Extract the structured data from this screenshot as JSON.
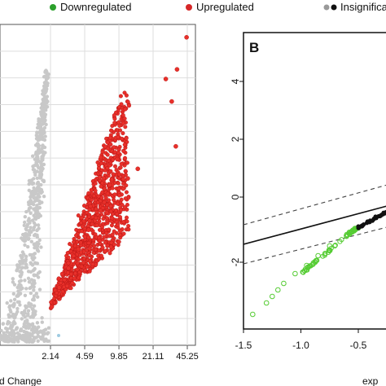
{
  "legend": {
    "items": [
      {
        "label": "Downregulated",
        "color": "#2ca02c"
      },
      {
        "label": "Upregulated",
        "color": "#d62728"
      },
      {
        "label": "Insignificant",
        "color": "#111111",
        "shown_text": "Insignifica"
      }
    ]
  },
  "chart_data": [
    {
      "type": "scatter",
      "panel": "A",
      "xlabel": "d Change",
      "ylabel": "",
      "x_tick_labels": [
        "2.14",
        "4.59",
        "9.85",
        "21.11",
        "45.25"
      ],
      "x_tick_values": [
        2.14,
        4.59,
        9.85,
        21.11,
        45.25
      ],
      "x_scale": "log",
      "grid": true,
      "series": [
        {
          "name": "Upregulated",
          "color": "#d62728",
          "points": [
            [
              44.5,
              0.96
            ],
            [
              36.0,
              0.86
            ],
            [
              28.0,
              0.83
            ],
            [
              32.0,
              0.76
            ],
            [
              35.0,
              0.62
            ],
            [
              15.0,
              0.55
            ],
            [
              12.0,
              0.52
            ],
            [
              9.5,
              0.58
            ],
            [
              8.0,
              0.5
            ],
            [
              6.5,
              0.42
            ],
            [
              5.0,
              0.36
            ],
            [
              4.0,
              0.3
            ],
            [
              3.2,
              0.24
            ],
            [
              2.6,
              0.18
            ],
            [
              2.2,
              0.12
            ]
          ]
        },
        {
          "name": "Insignificant",
          "color": "#cccccc",
          "points": [
            [
              1.0,
              0.02
            ],
            [
              1.4,
              0.08
            ],
            [
              1.8,
              0.14
            ],
            [
              2.0,
              0.2
            ]
          ]
        }
      ]
    },
    {
      "type": "scatter",
      "panel": "B",
      "panel_label": "B",
      "xlabel": "exp",
      "x_tick_labels": [
        "-1.5",
        "-1.0",
        "-0.5"
      ],
      "y_tick_labels": [
        "4",
        "2",
        "0",
        "-2"
      ],
      "xlim": [
        -1.55,
        -0.15
      ],
      "ylim": [
        -4.3,
        5.0
      ],
      "grid": false,
      "series": [
        {
          "name": "Downregulated",
          "color": "#2ca02c",
          "marker": "open-circle",
          "points": [
            [
              -1.42,
              -3.6
            ],
            [
              -1.3,
              -3.25
            ],
            [
              -1.25,
              -3.05
            ],
            [
              -1.2,
              -2.85
            ],
            [
              -1.15,
              -2.65
            ],
            [
              -1.05,
              -2.35
            ],
            [
              -0.95,
              -2.1
            ],
            [
              -0.85,
              -1.8
            ],
            [
              -0.75,
              -1.5
            ],
            [
              -0.6,
              -1.15
            ],
            [
              -0.5,
              -0.95
            ]
          ]
        },
        {
          "name": "Insignificant",
          "color": "#111111",
          "marker": "filled-circle",
          "points": [
            [
              -0.5,
              -0.9
            ],
            [
              -0.42,
              -0.75
            ],
            [
              -0.35,
              -0.6
            ],
            [
              -0.28,
              -0.48
            ],
            [
              -0.22,
              -0.38
            ],
            [
              -0.18,
              -0.3
            ]
          ]
        }
      ],
      "lines": [
        {
          "style": "solid",
          "from": [
            -1.55,
            -1.45
          ],
          "to": [
            -0.15,
            -0.25
          ]
        },
        {
          "style": "dashed",
          "from": [
            -1.55,
            -0.85
          ],
          "to": [
            -0.15,
            0.45
          ]
        },
        {
          "style": "dashed",
          "from": [
            -1.55,
            -2.05
          ],
          "to": [
            -0.15,
            -0.9
          ]
        }
      ]
    }
  ]
}
